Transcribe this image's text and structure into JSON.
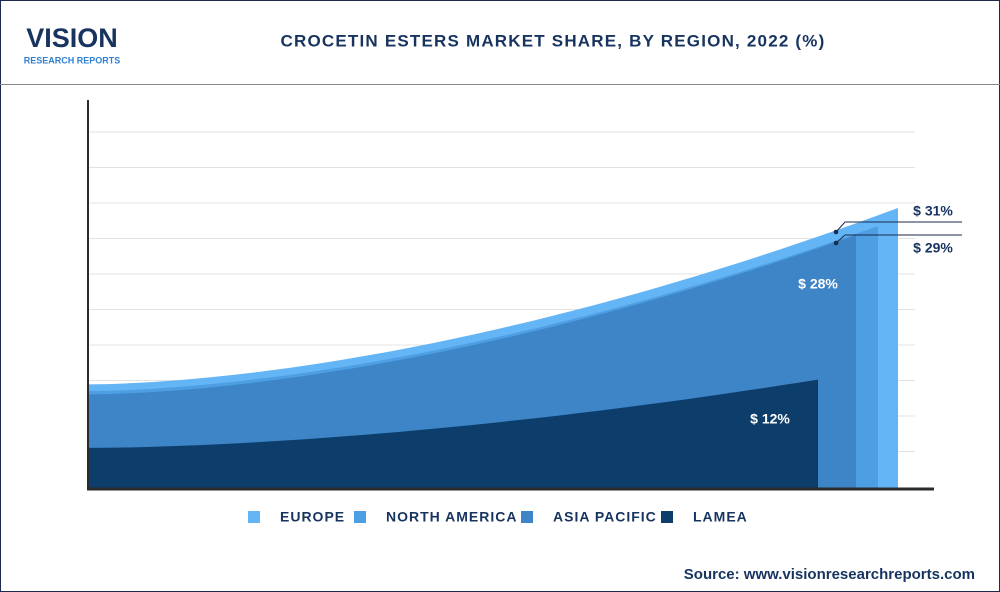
{
  "header": {
    "logo": "VISION",
    "logo_sub": "RESEARCH REPORTS"
  },
  "chart_data": {
    "type": "area",
    "title": "CROCETIN ESTERS MARKET SHARE, BY REGION, 2022 (%)",
    "categories": [
      "EUROPE",
      "NORTH AMERICA",
      "ASIA PACIFIC",
      "LAMEA"
    ],
    "values": [
      31,
      29,
      28,
      12
    ],
    "value_labels": [
      "$ 31%",
      "$ 29%",
      "$ 28%",
      "$ 12%"
    ],
    "colors": [
      "#64b5f6",
      "#4d9ee3",
      "#3d85c6",
      "#0d3d6b"
    ],
    "grid": true
  },
  "source": "Source: www.visionresearchreports.com"
}
